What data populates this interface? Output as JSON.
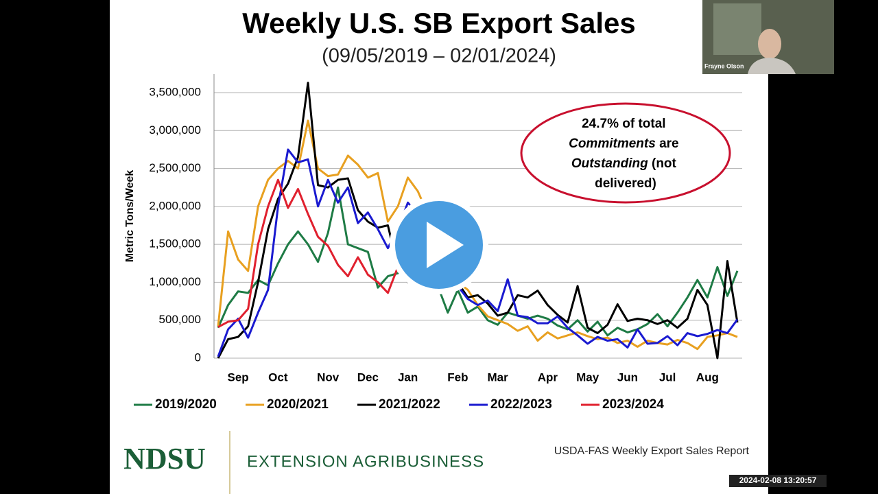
{
  "chart_data": {
    "type": "line",
    "title": "Weekly U.S. SB Export Sales",
    "subtitle": "(09/05/2019 – 02/01/2024)",
    "y_label": "Metric Tons/Week",
    "annotation": [
      [
        "24.7% of total"
      ],
      [
        "Commitments",
        " are"
      ],
      [
        "Outstanding",
        " (not"
      ],
      [
        "delivered)"
      ]
    ],
    "x": [
      1,
      2,
      3,
      4,
      5,
      6,
      7,
      8,
      9,
      10,
      11,
      12,
      13,
      14,
      15,
      16,
      17,
      18,
      19,
      20,
      21,
      22,
      23,
      24,
      25,
      26,
      27,
      28,
      29,
      30,
      31,
      32,
      33,
      34,
      35,
      36,
      37,
      38,
      39,
      40,
      41,
      42,
      43,
      44,
      45,
      46,
      47,
      48,
      49,
      50,
      51,
      52,
      53
    ],
    "xlim": [
      1,
      53
    ],
    "xticks": [
      {
        "value": 3,
        "label": "Sep"
      },
      {
        "value": 7,
        "label": "Oct"
      },
      {
        "value": 12,
        "label": "Nov"
      },
      {
        "value": 16,
        "label": "Dec"
      },
      {
        "value": 20,
        "label": "Jan"
      },
      {
        "value": 25,
        "label": "Feb"
      },
      {
        "value": 29,
        "label": "Mar"
      },
      {
        "value": 34,
        "label": "Apr"
      },
      {
        "value": 38,
        "label": "May"
      },
      {
        "value": 42,
        "label": "Jun"
      },
      {
        "value": 46,
        "label": "Jul"
      },
      {
        "value": 50,
        "label": "Aug"
      }
    ],
    "ylim": [
      0,
      3500000
    ],
    "yticks": [
      0,
      {
        "value": 500000,
        "label": "500,000"
      },
      {
        "value": 1000000,
        "label": "1,000,000"
      },
      {
        "value": 1500000,
        "label": "1,500,000"
      },
      {
        "value": 2000000,
        "label": "2,000,000"
      },
      {
        "value": 2500000,
        "label": "2,500,000"
      },
      {
        "value": 3000000,
        "label": "3,000,000"
      },
      {
        "value": 3500000,
        "label": "3,500,000"
      }
    ],
    "grid": true,
    "legend": "bottom",
    "series": [
      {
        "name": "2019/2020",
        "color": "#1e7b45",
        "values": [
          400000,
          700000,
          880000,
          860000,
          1030000,
          960000,
          1250000,
          1500000,
          1670000,
          1500000,
          1270000,
          1650000,
          2250000,
          1500000,
          1450000,
          1400000,
          930000,
          1080000,
          1120000,
          1200000,
          1150000,
          1050000,
          950000,
          600000,
          900000,
          600000,
          680000,
          500000,
          440000,
          600000,
          560000,
          520000,
          560000,
          520000,
          430000,
          380000,
          500000,
          350000,
          480000,
          300000,
          400000,
          340000,
          380000,
          450000,
          580000,
          420000,
          600000,
          800000,
          1030000,
          800000,
          1200000,
          820000,
          1150000
        ]
      },
      {
        "name": "2020/2021",
        "color": "#e8a020",
        "values": [
          420000,
          1670000,
          1300000,
          1150000,
          2000000,
          2350000,
          2500000,
          2600000,
          2500000,
          3130000,
          2500000,
          2400000,
          2420000,
          2670000,
          2550000,
          2380000,
          2440000,
          1800000,
          2000000,
          2380000,
          2200000,
          1900000,
          1500000,
          1200000,
          1000000,
          900000,
          700000,
          550000,
          500000,
          450000,
          360000,
          420000,
          230000,
          340000,
          260000,
          300000,
          340000,
          290000,
          250000,
          270000,
          200000,
          230000,
          150000,
          230000,
          200000,
          180000,
          240000,
          200000,
          120000,
          280000,
          300000,
          330000,
          280000
        ]
      },
      {
        "name": "2021/2022",
        "color": "#000000",
        "values": [
          0,
          250000,
          280000,
          420000,
          1000000,
          1700000,
          2100000,
          2300000,
          2650000,
          3630000,
          2280000,
          2250000,
          2350000,
          2370000,
          1950000,
          1800000,
          1720000,
          1750000,
          1200000,
          1000000,
          1200000,
          1400000,
          1300000,
          1100000,
          1000000,
          800000,
          830000,
          720000,
          560000,
          600000,
          830000,
          800000,
          890000,
          700000,
          570000,
          470000,
          950000,
          400000,
          330000,
          440000,
          710000,
          490000,
          520000,
          500000,
          450000,
          500000,
          400000,
          520000,
          900000,
          700000,
          0,
          1280000,
          470000
        ]
      },
      {
        "name": "2022/2023",
        "color": "#1a1ad0",
        "values": [
          20000,
          380000,
          520000,
          270000,
          600000,
          900000,
          2000000,
          2750000,
          2580000,
          2620000,
          2000000,
          2350000,
          2050000,
          2250000,
          1780000,
          1920000,
          1700000,
          1450000,
          1700000,
          2050000,
          1900000,
          1600000,
          1300000,
          1100000,
          950000,
          780000,
          700000,
          760000,
          620000,
          1040000,
          560000,
          540000,
          460000,
          460000,
          550000,
          400000,
          300000,
          190000,
          280000,
          230000,
          250000,
          140000,
          380000,
          190000,
          200000,
          290000,
          170000,
          330000,
          290000,
          320000,
          370000,
          330000,
          510000
        ]
      },
      {
        "name": "2023/2024",
        "color": "#e0202e",
        "values": [
          410000,
          480000,
          500000,
          650000,
          1500000,
          2000000,
          2350000,
          1980000,
          2230000,
          1900000,
          1600000,
          1480000,
          1230000,
          1080000,
          1330000,
          1100000,
          1000000,
          860000,
          1200000,
          null,
          null,
          null,
          null,
          null,
          null,
          null,
          null,
          null,
          null,
          null,
          null,
          null,
          null,
          null,
          null,
          null,
          null,
          null,
          null,
          null,
          null,
          null,
          null,
          null,
          null,
          null,
          null,
          null,
          null,
          null,
          null,
          null,
          null
        ]
      }
    ]
  },
  "footer": {
    "logo": "NDSU",
    "unit": "EXTENSION AGRIBUSINESS",
    "source": "USDA-FAS Weekly Export Sales Report"
  },
  "video": {
    "presenter": "Frayne Olson",
    "timestamp": "2024-02-08 13:20:57"
  }
}
